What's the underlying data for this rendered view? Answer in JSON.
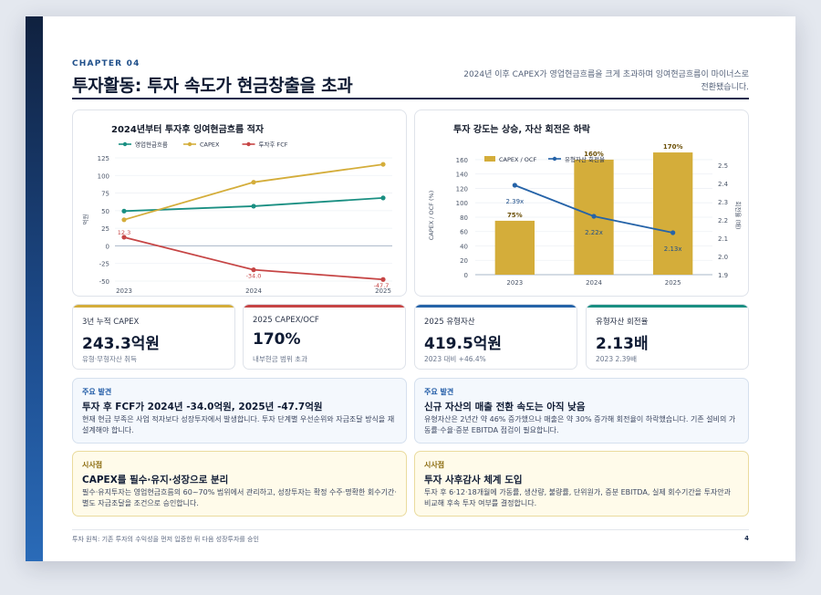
{
  "header": {
    "chapter": "CHAPTER 04",
    "title": "투자활동: 투자 속도가 현금창출을 초과",
    "subtitle": "2024년 이후 CAPEX가 영업현금흐름을 크게 초과하며 잉여현금흐름이 마이너스로 전환됐습니다."
  },
  "colors": {
    "teal": "#1a8f82",
    "gold": "#d4ad3a",
    "red": "#c64545",
    "blue": "#2563a8",
    "navy": "#1a2b4d"
  },
  "chart_data": [
    {
      "type": "line",
      "title": "2024년부터 투자후 잉여현금흐름 적자",
      "ylabel": "억원",
      "x": [
        "2023",
        "2024",
        "2025"
      ],
      "ylim": [
        -50,
        125
      ],
      "yticks": [
        "125",
        "100",
        "75",
        "50",
        "25",
        "0",
        "-25",
        "-50"
      ],
      "series": [
        {
          "name": "영업현금흐름",
          "color": "#1a8f82",
          "values": [
            49.4,
            56.4,
            68.1
          ]
        },
        {
          "name": "CAPEX",
          "color": "#d4ad3a",
          "values": [
            37.1,
            90.4,
            115.8
          ]
        },
        {
          "name": "투자후 FCF",
          "color": "#c64545",
          "values": [
            12.3,
            -34.0,
            -47.7
          ],
          "labels": [
            "12.3",
            "-34.0",
            "-47.7"
          ]
        }
      ]
    },
    {
      "type": "bar",
      "title": "투자 강도는 상승, 자산 회전은 하락",
      "ylabel": "CAPEX / OCF (%)",
      "y2label": "회전율 (배)",
      "categories": [
        "2023",
        "2024",
        "2025"
      ],
      "ylim": [
        0,
        165
      ],
      "y2lim": [
        1.9,
        2.55
      ],
      "yticks": [
        "160",
        "140",
        "120",
        "100",
        "80",
        "60",
        "40",
        "20",
        "0"
      ],
      "y2ticks": [
        "2.5",
        "2.4",
        "2.3",
        "2.2",
        "2.1",
        "2.0",
        "1.9"
      ],
      "series": [
        {
          "name": "CAPEX / OCF",
          "color": "#d4ad3a",
          "values": [
            75,
            160,
            170
          ],
          "labels": [
            "75%",
            "160%",
            "170%"
          ]
        },
        {
          "name": "유형자산 회전율",
          "color": "#2563a8",
          "values": [
            2.39,
            2.22,
            2.13
          ],
          "labels": [
            "2.39x",
            "2.22x",
            "2.13x"
          ]
        }
      ]
    }
  ],
  "kpis": [
    {
      "label": "3년 누적 CAPEX",
      "value": "243.3억원",
      "sub": "유형·무형자산 취득"
    },
    {
      "label": "2025 CAPEX/OCF",
      "value": "170%",
      "sub": "내부현금 범위 초과"
    },
    {
      "label": "2025 유형자산",
      "value": "419.5억원",
      "sub": "2023 대비 +46.4%"
    },
    {
      "label": "유형자산 회전율",
      "value": "2.13배",
      "sub": "2023 2.39배"
    }
  ],
  "findings": [
    {
      "tag": "주요 발견",
      "title": "투자 후 FCF가 2024년 -34.0억원, 2025년 -47.7억원",
      "body": "현재 현금 부족은 사업 적자보다 성장투자에서 발생합니다. 투자 단계별 우선순위와 자금조달 방식을 재설계해야 합니다."
    },
    {
      "tag": "주요 발견",
      "title": "신규 자산의 매출 전환 속도는 아직 낮음",
      "body": "유형자산은 2년간 약 46% 증가했으나 매출은 약 30% 증가해 회전율이 하락했습니다. 기존 설비의 가동률·수율·증분 EBITDA 점검이 필요합니다."
    }
  ],
  "implications": [
    {
      "tag": "시사점",
      "title": "CAPEX를 필수·유지·성장으로 분리",
      "body": "필수·유지투자는 영업현금흐름의 60~70% 범위에서 관리하고, 성장투자는 확정 수주·명확한 회수기간·별도 자금조달을 조건으로 승인합니다."
    },
    {
      "tag": "시사점",
      "title": "투자 사후감사 체계 도입",
      "body": "투자 후 6·12·18개월에 가동률, 생산량, 불량률, 단위원가, 증분 EBITDA, 실제 회수기간을 투자안과 비교해 후속 투자 여부를 결정합니다."
    }
  ],
  "footer": {
    "note": "투자 원칙: 기존 투자의 수익성을 먼저 입증한 뒤 다음 성장투자를 승인",
    "page": "4"
  }
}
